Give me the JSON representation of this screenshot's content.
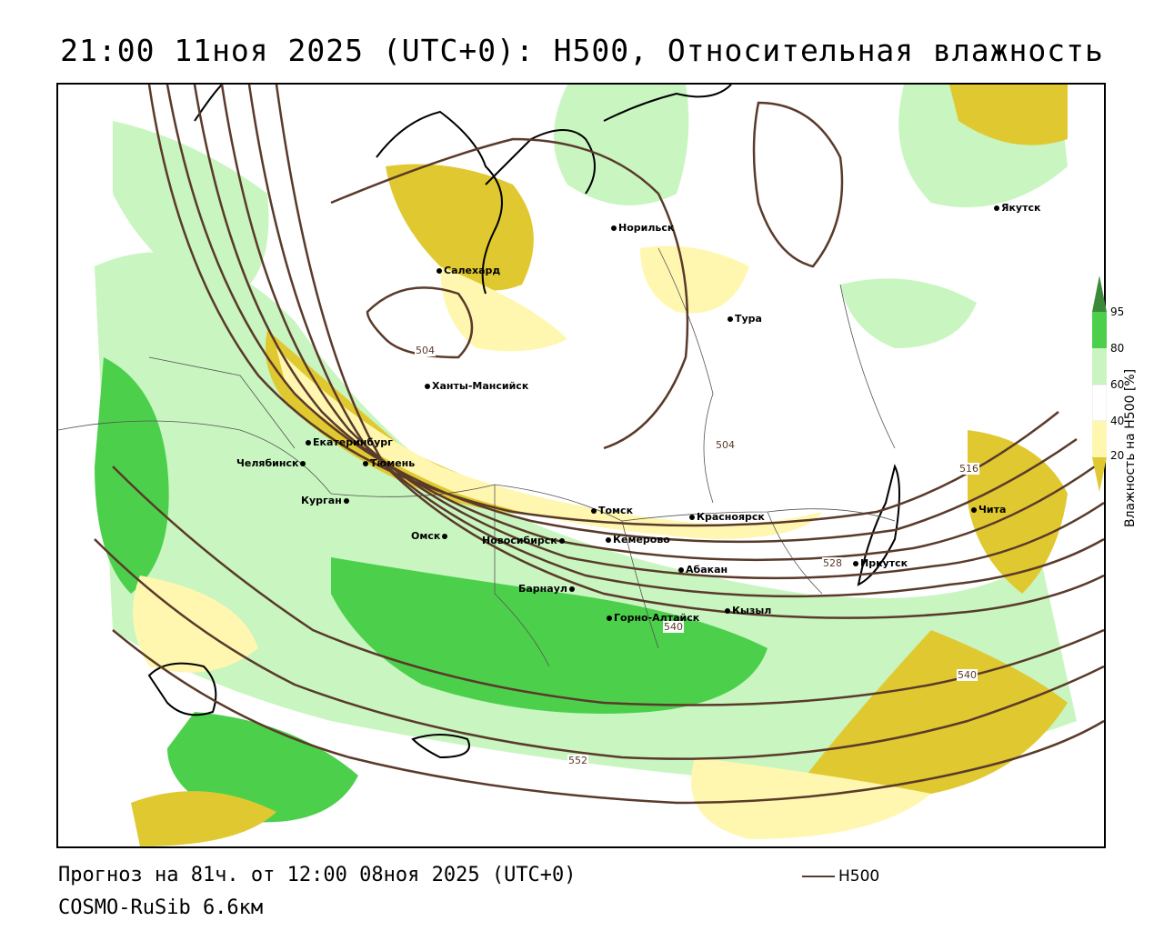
{
  "title": "21:00 11ноя 2025 (UTC+0): H500, Относительная влажность",
  "footer": {
    "forecast": "Прогноз на 81ч. от 12:00 08ноя 2025 (UTC+0)",
    "model": "COSMO-RuSib 6.6км"
  },
  "legend": {
    "line_label": "H500",
    "line_color": "#5a3a2a"
  },
  "colorbar": {
    "title": "Влажность на H500 [%]",
    "ticks": [
      "95",
      "80",
      "60",
      "40",
      "20"
    ],
    "colors": {
      "c95": "#3a8a3a",
      "c80": "#4cd04c",
      "c60": "#c8f5c0",
      "c40": "#ffffff",
      "c20": "#fff7b0",
      "c0": "#e0c830"
    }
  },
  "cities": [
    {
      "name": "Якутск"
    },
    {
      "name": "Норильск"
    },
    {
      "name": "Салехард"
    },
    {
      "name": "Тура"
    },
    {
      "name": "Ханты-Мансийск"
    },
    {
      "name": "Екатеринбург"
    },
    {
      "name": "Тюмень"
    },
    {
      "name": "Челябинск"
    },
    {
      "name": "Курган"
    },
    {
      "name": "Омск"
    },
    {
      "name": "Новосибирск"
    },
    {
      "name": "Томск"
    },
    {
      "name": "Красноярск"
    },
    {
      "name": "Кемерово"
    },
    {
      "name": "Абакан"
    },
    {
      "name": "Барнаул"
    },
    {
      "name": "Горно-Алтайск"
    },
    {
      "name": "Кызыл"
    },
    {
      "name": "Иркутск"
    },
    {
      "name": "Чита"
    }
  ],
  "isolines": [
    {
      "label": "504"
    },
    {
      "label": "504"
    },
    {
      "label": "516"
    },
    {
      "label": "528"
    },
    {
      "label": "540"
    },
    {
      "label": "540"
    },
    {
      "label": "552"
    }
  ]
}
